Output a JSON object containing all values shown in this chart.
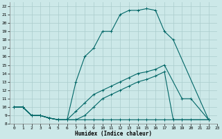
{
  "xlabel": "Humidex (Indice chaleur)",
  "bg_color": "#cce8e8",
  "grid_color": "#aacccc",
  "line_color": "#006666",
  "xlim": [
    -0.5,
    23
  ],
  "ylim": [
    8,
    22.5
  ],
  "xticks": [
    0,
    1,
    2,
    3,
    4,
    5,
    6,
    7,
    8,
    9,
    10,
    11,
    12,
    13,
    14,
    15,
    16,
    17,
    18,
    19,
    20,
    21,
    22,
    23
  ],
  "yticks": [
    8,
    9,
    10,
    11,
    12,
    13,
    14,
    15,
    16,
    17,
    18,
    19,
    20,
    21,
    22
  ],
  "curve1_x": [
    0,
    1,
    2,
    3,
    4,
    5,
    6,
    7,
    8,
    9,
    10,
    11,
    12,
    13,
    14,
    15,
    16,
    17,
    18,
    22
  ],
  "curve1_y": [
    10,
    10,
    9,
    9,
    8.7,
    8.5,
    8.5,
    13,
    16,
    17,
    19,
    19,
    21,
    21.5,
    21.5,
    21.7,
    21.5,
    19,
    18,
    8.5
  ],
  "curve2_x": [
    0,
    1,
    2,
    3,
    4,
    5,
    6,
    7,
    8,
    9,
    10,
    11,
    12,
    13,
    14,
    15,
    16,
    17,
    19,
    20,
    22
  ],
  "curve2_y": [
    10,
    10,
    9,
    9,
    8.7,
    8.5,
    8.5,
    9.5,
    10.5,
    11.5,
    12,
    12.5,
    13,
    13.5,
    14,
    14.2,
    14.5,
    15,
    11,
    11,
    8.5
  ],
  "curve3_x": [
    0,
    1,
    2,
    3,
    4,
    5,
    6,
    7,
    8,
    9,
    10,
    11,
    12,
    13,
    14,
    15,
    16,
    17,
    18,
    19,
    22
  ],
  "curve3_y": [
    10,
    10,
    9,
    9,
    8.7,
    8.5,
    8.5,
    8.5,
    8.5,
    8.5,
    8.5,
    8.5,
    8.5,
    8.5,
    8.5,
    8.5,
    8.5,
    8.5,
    8.5,
    8.5,
    8.5
  ],
  "curve4_x": [
    0,
    1,
    2,
    3,
    4,
    5,
    6,
    7,
    8,
    9,
    10,
    11,
    12,
    13,
    14,
    15,
    16,
    17,
    18,
    19,
    20,
    22
  ],
  "curve4_y": [
    10,
    10,
    9,
    9,
    8.7,
    8.5,
    8.5,
    8.5,
    9,
    10,
    11,
    11.5,
    12,
    12.5,
    13,
    13.3,
    13.7,
    14.2,
    8.5,
    8.5,
    8.5,
    8.5
  ]
}
